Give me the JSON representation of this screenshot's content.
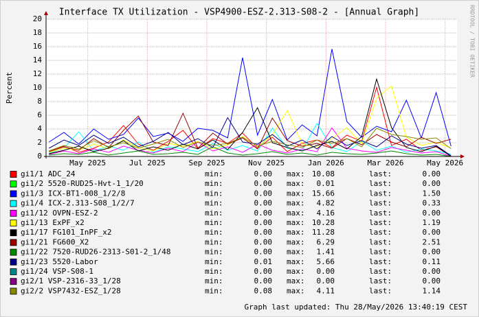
{
  "chart_data": {
    "type": "line",
    "title": "Interface TX Utilization - VSP4900-ESZ-2.313-S08-2 - [Annual Graph]",
    "y_label": "Percent",
    "watermark": "RRDTOOL / TOBI OETIKER",
    "footer": "Graph last updated: Thu 28/May/2026 13:40:19 CEST",
    "stat_labels": [
      "min:",
      "max:",
      "last:"
    ],
    "grid": true,
    "ylim": [
      0,
      20
    ],
    "yticks": [
      0,
      2,
      4,
      6,
      8,
      10,
      12,
      14,
      16,
      18,
      20
    ],
    "xlim": [
      2.6,
      16.4
    ],
    "xticks": [
      {
        "value": 4,
        "label": "May 2025"
      },
      {
        "value": 6,
        "label": "Jul 2025"
      },
      {
        "value": 8,
        "label": "Sep 2025"
      },
      {
        "value": 10,
        "label": "Nov 2025"
      },
      {
        "value": 12,
        "label": "Jan 2026"
      },
      {
        "value": 14,
        "label": "Mar 2026"
      },
      {
        "value": 16,
        "label": "May 2026"
      }
    ],
    "x": [
      2.7,
      3.2,
      3.7,
      4.2,
      4.7,
      5.2,
      5.7,
      6.2,
      6.7,
      7.2,
      7.7,
      8.2,
      8.7,
      9.2,
      9.7,
      10.2,
      10.7,
      11.2,
      11.7,
      12.2,
      12.7,
      13.2,
      13.7,
      14.2,
      14.7,
      15.2,
      15.7,
      16.2
    ],
    "series": [
      {
        "name": "gi1/1 ADC_24",
        "color": "#ff0000",
        "stats": {
          "min": "0.00",
          "max": "10.08",
          "last": "0.00"
        },
        "values": [
          0.8,
          1.5,
          0.6,
          1.2,
          2.1,
          4.5,
          1.8,
          0.9,
          2.2,
          3.8,
          1.1,
          2.6,
          1.9,
          3.4,
          1.2,
          2.8,
          0.7,
          1.9,
          2.4,
          1.3,
          3.1,
          2.2,
          10.08,
          1.6,
          2.5,
          0.9,
          1.4,
          0
        ]
      },
      {
        "name": "gi1/2 5520-RUD25-Hvt-1_1/20",
        "color": "#00ff00",
        "stats": {
          "min": "0.00",
          "max": "0.01",
          "last": "0.00"
        },
        "values": [
          0,
          0,
          0,
          0.01,
          0,
          0,
          0,
          0,
          0,
          0,
          0,
          0,
          0,
          0,
          0,
          0,
          0,
          0,
          0,
          0,
          0,
          0,
          0,
          0,
          0,
          0,
          0,
          0
        ]
      },
      {
        "name": "gi1/3 ICX-BT1-008_1/2/8",
        "color": "#0000ff",
        "stats": {
          "min": "0.00",
          "max": "15.66",
          "last": "1.50"
        },
        "values": [
          2.1,
          3.5,
          1.8,
          4.0,
          2.5,
          3.2,
          5.6,
          2.9,
          3.4,
          2.2,
          4.1,
          3.8,
          2.7,
          14.4,
          3.1,
          8.3,
          2.4,
          4.6,
          3.0,
          15.66,
          5.1,
          2.8,
          4.4,
          3.6,
          8.2,
          2.7,
          9.3,
          1.5
        ]
      },
      {
        "name": "gi1/4 ICX-2.313-S08_1/2/7",
        "color": "#00ffff",
        "stats": {
          "min": "0.00",
          "max": "4.82",
          "last": "0.33"
        },
        "values": [
          0.5,
          1.2,
          3.6,
          0.8,
          1.5,
          0.9,
          2.1,
          0.6,
          1.4,
          1.1,
          0.7,
          1.9,
          0.9,
          1.6,
          0.8,
          4.1,
          1.2,
          0.9,
          4.82,
          1.3,
          0.7,
          2.2,
          0.9,
          1.5,
          0.6,
          1.1,
          0.8,
          0.33
        ]
      },
      {
        "name": "gi1/12 OVPN-ESZ-2",
        "color": "#ff00ff",
        "stats": {
          "min": "0.00",
          "max": "4.16",
          "last": "0.00"
        },
        "values": [
          0.3,
          0.8,
          0.4,
          1.1,
          0.6,
          1.5,
          0.9,
          0.5,
          1.2,
          0.7,
          2.1,
          0.8,
          1.4,
          0.6,
          1.8,
          0.9,
          0.5,
          1.1,
          0.7,
          4.16,
          1.2,
          0.8,
          0.6,
          1.3,
          0.9,
          0.5,
          0.7,
          0
        ]
      },
      {
        "name": "gi1/13 ExPF_x2",
        "color": "#ffff00",
        "stats": {
          "min": "0.00",
          "max": "10.28",
          "last": "1.19"
        },
        "values": [
          0.6,
          1.2,
          0.9,
          1.8,
          1.1,
          2.4,
          1.3,
          0.8,
          1.9,
          1.5,
          2.2,
          1.1,
          1.7,
          2.9,
          1.4,
          3.1,
          6.7,
          1.8,
          1.3,
          2.6,
          4.2,
          1.9,
          8.5,
          10.28,
          2.8,
          1.6,
          2.1,
          1.19
        ]
      },
      {
        "name": "gi1/17 FG101_InPF_x2",
        "color": "#000000",
        "stats": {
          "min": "0.00",
          "max": "11.28",
          "last": "0.00"
        },
        "values": [
          0.4,
          0.9,
          1.5,
          0.7,
          1.2,
          2.3,
          0.8,
          1.4,
          0.9,
          1.8,
          1.1,
          2.4,
          1.0,
          3.5,
          7.1,
          2.0,
          1.3,
          0.8,
          1.6,
          2.2,
          1.1,
          2.9,
          11.28,
          4.2,
          1.3,
          0.7,
          1.5,
          0
        ]
      },
      {
        "name": "gi1/21 FG600_X2",
        "color": "#990000",
        "stats": {
          "min": "0.00",
          "max": "6.29",
          "last": "2.51"
        },
        "values": [
          0.7,
          1.4,
          0.9,
          2.6,
          1.3,
          3.8,
          5.9,
          2.1,
          1.6,
          6.29,
          1.2,
          3.4,
          1.8,
          2.7,
          1.1,
          5.6,
          2.3,
          1.5,
          1.9,
          1.2,
          2.6,
          1.7,
          3.2,
          2.1,
          1.4,
          2.8,
          1.9,
          2.51
        ]
      },
      {
        "name": "gi1/22 7520-RUD26-2313-S01-2_1/48",
        "color": "#008800",
        "stats": {
          "min": "0.00",
          "max": "1.41",
          "last": "0.00"
        },
        "values": [
          0.2,
          0.4,
          0.3,
          0.6,
          0.2,
          0.5,
          0.8,
          0.3,
          0.4,
          0.6,
          0.3,
          1.41,
          0.5,
          0.2,
          0.4,
          0.7,
          0.3,
          0.5,
          0.2,
          0.6,
          0.4,
          0.3,
          0.5,
          0.8,
          0.4,
          0.2,
          0.3,
          0
        ]
      },
      {
        "name": "gi1/23 5520-Labor",
        "color": "#000088",
        "stats": {
          "min": "0.01",
          "max": "5.66",
          "last": "0.11"
        },
        "values": [
          1.2,
          2.4,
          1.6,
          3.1,
          1.9,
          2.8,
          1.4,
          2.2,
          3.5,
          1.7,
          2.6,
          1.3,
          5.66,
          2.1,
          1.8,
          3.2,
          1.5,
          2.4,
          1.1,
          2.9,
          1.6,
          2.3,
          1.4,
          3.0,
          1.8,
          1.2,
          1.6,
          0.11
        ]
      },
      {
        "name": "gi1/24 VSP-S08-1",
        "color": "#008888",
        "stats": {
          "min": "0.00",
          "max": "0.00",
          "last": "0.00"
        },
        "values": [
          0,
          0,
          0,
          0,
          0,
          0,
          0,
          0,
          0,
          0,
          0,
          0,
          0,
          0,
          0,
          0,
          0,
          0,
          0,
          0,
          0,
          0,
          0,
          0,
          0,
          0,
          0,
          0
        ]
      },
      {
        "name": "gi2/1 VSP-2316-33_1/28",
        "color": "#880088",
        "stats": {
          "min": "0.00",
          "max": "0.00",
          "last": "0.00"
        },
        "values": [
          0,
          0,
          0,
          0,
          0,
          0,
          0,
          0,
          0,
          0,
          0,
          0,
          0,
          0,
          0,
          0,
          0,
          0,
          0,
          0,
          0,
          0,
          0,
          0,
          0,
          0,
          0,
          0
        ]
      },
      {
        "name": "gi2/2 VSP7432-ESZ_1/28",
        "color": "#888800",
        "stats": {
          "min": "0.08",
          "max": "4.11",
          "last": "1.14"
        },
        "values": [
          0.8,
          1.6,
          1.1,
          2.3,
          1.4,
          2.0,
          1.2,
          1.8,
          2.5,
          1.3,
          2.1,
          1.6,
          1.9,
          2.8,
          1.5,
          2.2,
          1.7,
          1.3,
          2.4,
          1.9,
          2.6,
          1.4,
          4.11,
          3.2,
          2.9,
          2.5,
          2.7,
          1.14
        ]
      }
    ]
  }
}
